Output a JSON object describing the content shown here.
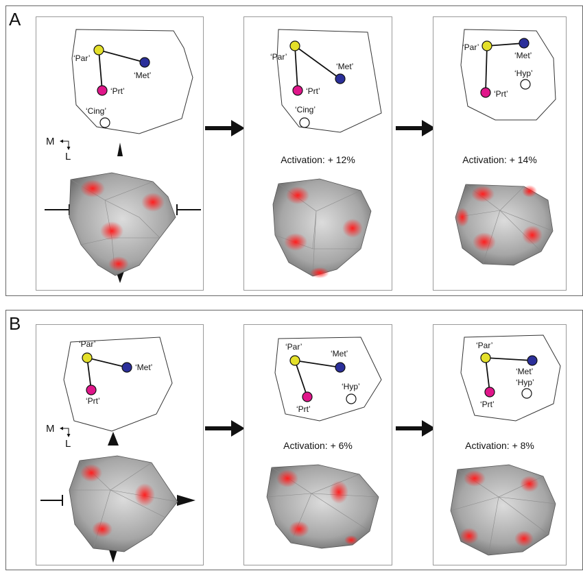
{
  "panels": [
    {
      "letter": "A",
      "steps": [
        {
          "activation": "",
          "nodes": {
            "par": "‘Par’",
            "met": "‘Met’",
            "prt": "‘Prt’",
            "extra": "‘Cing’"
          }
        },
        {
          "activation": "Activation: + 12%",
          "nodes": {
            "par": "‘Par’",
            "met": "‘Met’",
            "prt": "‘Prt’",
            "extra": "‘Cing’"
          }
        },
        {
          "activation": "Activation: + 14%",
          "nodes": {
            "par": "‘Par’",
            "met": "‘Met’",
            "prt": "‘Prt’",
            "extra": "‘Hyp’"
          }
        }
      ],
      "axis": {
        "m": "M",
        "l": "L"
      }
    },
    {
      "letter": "B",
      "steps": [
        {
          "activation": "",
          "nodes": {
            "par": "‘Par’",
            "met": "‘Met’",
            "prt": "‘Prt’",
            "extra": ""
          }
        },
        {
          "activation": "Activation: + 6%",
          "nodes": {
            "par": "‘Par’",
            "met": "‘Met’",
            "prt": "‘Prt’",
            "extra": "‘Hyp’"
          }
        },
        {
          "activation": "Activation: + 8%",
          "nodes": {
            "par": "‘Par’",
            "met": "‘Met’",
            "prt": "‘Prt’",
            "extra": "‘Hyp’"
          }
        }
      ],
      "axis": {
        "m": "M",
        "l": "L"
      }
    }
  ],
  "colors": {
    "par": "#e4e02a",
    "met": "#2b2f9a",
    "prt": "#e0168a",
    "extra": "#ffffff",
    "blob": "#a8a8a8",
    "spot": "#ff2a2a"
  }
}
